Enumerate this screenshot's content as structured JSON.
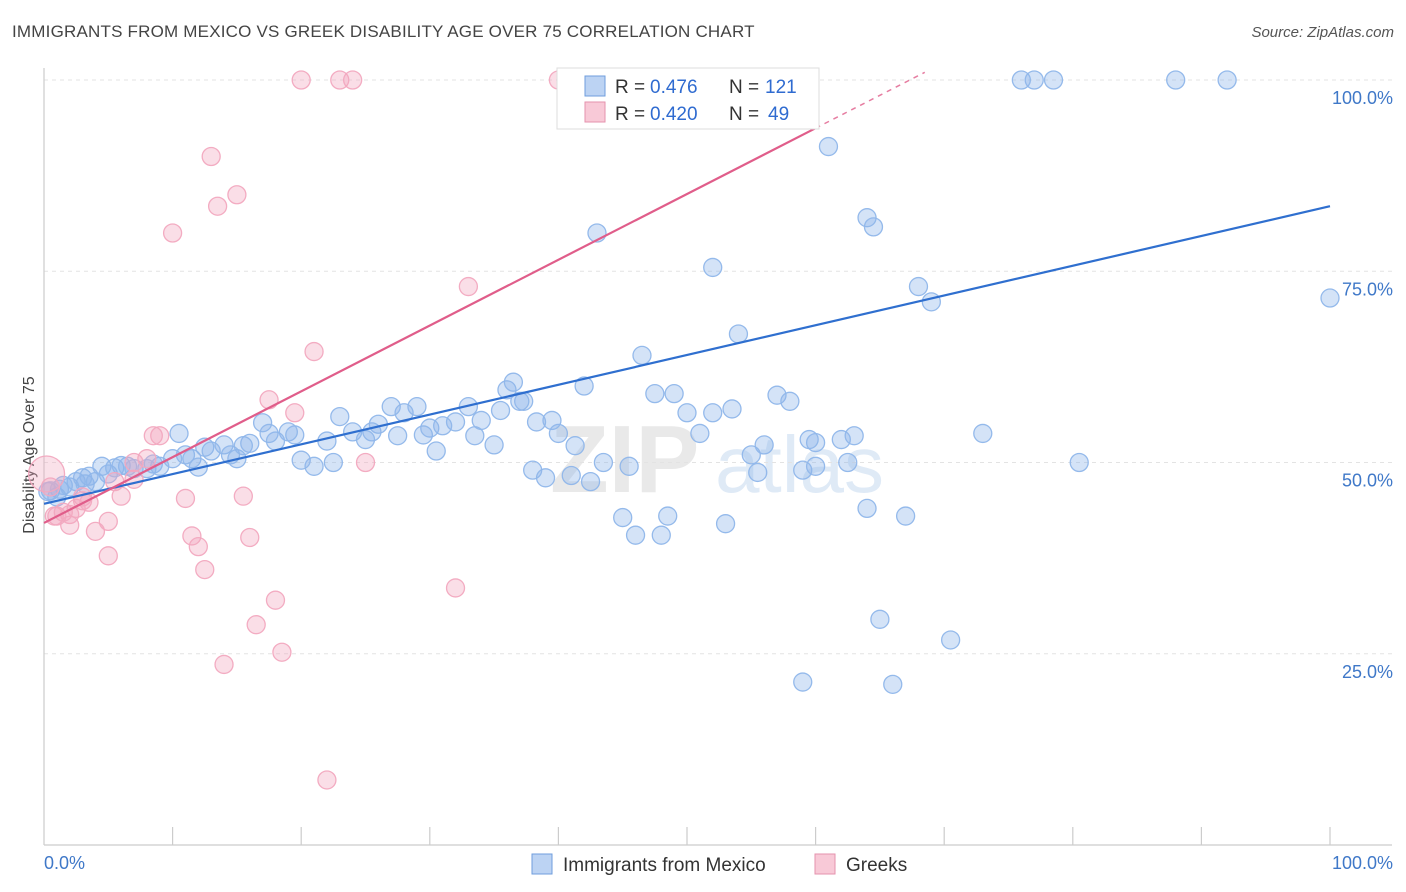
{
  "header": {
    "title": "IMMIGRANTS FROM MEXICO VS GREEK DISABILITY AGE OVER 75 CORRELATION CHART",
    "source": "Source: ZipAtlas.com"
  },
  "watermark": {
    "zip": "ZIP",
    "atlas": "atlas"
  },
  "chart_data": {
    "type": "scatter",
    "ylabel": "Disability Age Over 75",
    "xlim": [
      0,
      100
    ],
    "ylim": [
      0,
      100
    ],
    "x_tick_labels": [
      "0.0%",
      "100.0%"
    ],
    "y_tick_labels": [
      "25.0%",
      "50.0%",
      "75.0%",
      "100.0%"
    ],
    "y_ticks": [
      25,
      50,
      75,
      100
    ],
    "grid": true,
    "legend_position": "top-center",
    "stats": [
      {
        "r_label": "R =",
        "r": "0.476",
        "n_label": "N =",
        "n": "121"
      },
      {
        "r_label": "R =",
        "r": "0.420",
        "n_label": "N =",
        "n": "49"
      }
    ],
    "series": [
      {
        "name": "Immigrants from Mexico",
        "color": "#8fb6ea",
        "line_color": "#2f6fcf",
        "trend": {
          "x0": 0,
          "y0": 44.6,
          "x1": 100,
          "y1": 83.5
        },
        "points": [
          [
            0.5,
            46.3
          ],
          [
            1,
            45.5
          ],
          [
            1.2,
            46.5
          ],
          [
            1.5,
            47
          ],
          [
            2,
            46.8
          ],
          [
            2.5,
            47.5
          ],
          [
            3,
            48
          ],
          [
            3.2,
            47.2
          ],
          [
            3.5,
            48.2
          ],
          [
            4,
            47.5
          ],
          [
            4.5,
            49.5
          ],
          [
            5,
            48.5
          ],
          [
            5.5,
            49.3
          ],
          [
            6,
            49.6
          ],
          [
            6.5,
            49.5
          ],
          [
            7,
            49.2
          ],
          [
            8,
            49.2
          ],
          [
            8.5,
            49.8
          ],
          [
            9,
            49.5
          ],
          [
            10,
            50.5
          ],
          [
            10.5,
            53.8
          ],
          [
            11,
            51
          ],
          [
            11.5,
            50.5
          ],
          [
            12,
            49.4
          ],
          [
            12.5,
            52
          ],
          [
            13,
            51.5
          ],
          [
            14,
            52.3
          ],
          [
            14.5,
            51
          ],
          [
            15,
            50.5
          ],
          [
            15.5,
            52.2
          ],
          [
            16,
            52.5
          ],
          [
            17,
            55.2
          ],
          [
            17.5,
            53.8
          ],
          [
            18,
            52.8
          ],
          [
            19,
            54
          ],
          [
            19.5,
            53.6
          ],
          [
            20,
            50.3
          ],
          [
            21,
            49.5
          ],
          [
            22,
            52.8
          ],
          [
            22.5,
            50
          ],
          [
            23,
            56
          ],
          [
            24,
            54
          ],
          [
            25,
            53
          ],
          [
            25.5,
            54
          ],
          [
            26,
            55
          ],
          [
            27,
            57.3
          ],
          [
            27.5,
            53.5
          ],
          [
            28,
            56.5
          ],
          [
            29,
            57.3
          ],
          [
            29.5,
            53.6
          ],
          [
            30,
            54.5
          ],
          [
            30.5,
            51.5
          ],
          [
            31,
            54.8
          ],
          [
            32,
            55.3
          ],
          [
            33,
            57.3
          ],
          [
            33.5,
            53.5
          ],
          [
            34,
            55.5
          ],
          [
            35,
            52.3
          ],
          [
            35.5,
            56.8
          ],
          [
            36,
            59.5
          ],
          [
            36.5,
            60.5
          ],
          [
            37,
            58
          ],
          [
            37.3,
            58
          ],
          [
            38,
            49
          ],
          [
            38.3,
            55.3
          ],
          [
            39,
            48
          ],
          [
            39.5,
            55.5
          ],
          [
            40,
            53.8
          ],
          [
            41,
            48.3
          ],
          [
            41.3,
            52.2
          ],
          [
            42,
            60
          ],
          [
            42.5,
            47.5
          ],
          [
            43,
            80
          ],
          [
            43.5,
            50
          ],
          [
            45,
            42.8
          ],
          [
            45.5,
            49.5
          ],
          [
            46,
            40.5
          ],
          [
            46.5,
            64
          ],
          [
            47.5,
            59
          ],
          [
            48,
            40.5
          ],
          [
            48.5,
            43
          ],
          [
            49,
            59
          ],
          [
            50,
            56.5
          ],
          [
            51,
            53.8
          ],
          [
            52,
            75.5
          ],
          [
            53,
            42
          ],
          [
            53.5,
            57
          ],
          [
            54,
            66.8
          ],
          [
            55,
            51
          ],
          [
            55.5,
            48.7
          ],
          [
            56,
            52.3
          ],
          [
            57,
            58.8
          ],
          [
            58,
            58
          ],
          [
            59,
            49
          ],
          [
            59.5,
            53
          ],
          [
            60,
            52.6
          ],
          [
            61,
            91.3
          ],
          [
            62,
            53
          ],
          [
            62.5,
            50
          ],
          [
            63,
            53.5
          ],
          [
            64,
            82
          ],
          [
            64.5,
            80.8
          ],
          [
            65,
            29.5
          ],
          [
            66,
            21
          ],
          [
            67,
            43
          ],
          [
            68,
            73
          ],
          [
            69,
            71
          ],
          [
            70.5,
            26.8
          ],
          [
            73,
            53.8
          ],
          [
            76,
            100
          ],
          [
            77,
            100
          ],
          [
            78.5,
            100
          ],
          [
            88,
            100
          ],
          [
            92,
            100
          ],
          [
            59,
            21.3
          ],
          [
            52,
            56.5
          ],
          [
            60,
            49.5
          ],
          [
            64,
            44
          ],
          [
            80.5,
            50
          ],
          [
            100,
            71.5
          ],
          [
            0.3,
            46.2
          ]
        ]
      },
      {
        "name": "Greeks",
        "color": "#f2a8bf",
        "line_color": "#e05d8a",
        "trend": {
          "x0": 0,
          "y0": 42.1,
          "x1": 60,
          "y1": 93.7
        },
        "points": [
          [
            0.2,
            48.5
          ],
          [
            0.5,
            46.8
          ],
          [
            1,
            43
          ],
          [
            1.5,
            43.5
          ],
          [
            2,
            41.8
          ],
          [
            2.5,
            44
          ],
          [
            3,
            45.5
          ],
          [
            3.5,
            44.8
          ],
          [
            4,
            41
          ],
          [
            5,
            37.8
          ],
          [
            5.5,
            47.5
          ],
          [
            6,
            45.6
          ],
          [
            7,
            47.8
          ],
          [
            8,
            50.5
          ],
          [
            8.5,
            53.5
          ],
          [
            9,
            53.5
          ],
          [
            10,
            80
          ],
          [
            11,
            45.3
          ],
          [
            11.5,
            40.4
          ],
          [
            12,
            39
          ],
          [
            12.5,
            36
          ],
          [
            13,
            90
          ],
          [
            13.5,
            83.5
          ],
          [
            14,
            23.6
          ],
          [
            15,
            85
          ],
          [
            15.5,
            45.6
          ],
          [
            16,
            40.2
          ],
          [
            16.5,
            28.8
          ],
          [
            17.5,
            58.2
          ],
          [
            18,
            32
          ],
          [
            18.5,
            25.2
          ],
          [
            19.5,
            56.5
          ],
          [
            20,
            100
          ],
          [
            21,
            64.5
          ],
          [
            22,
            8.5
          ],
          [
            23,
            100
          ],
          [
            24,
            100
          ],
          [
            25,
            50
          ],
          [
            32,
            33.6
          ],
          [
            33,
            73
          ],
          [
            40,
            100
          ],
          [
            47,
            100
          ],
          [
            48,
            100
          ],
          [
            50,
            100
          ],
          [
            5,
            42.3
          ],
          [
            7,
            50
          ],
          [
            2,
            43.2
          ],
          [
            3,
            45
          ],
          [
            0.8,
            43
          ]
        ]
      }
    ]
  }
}
